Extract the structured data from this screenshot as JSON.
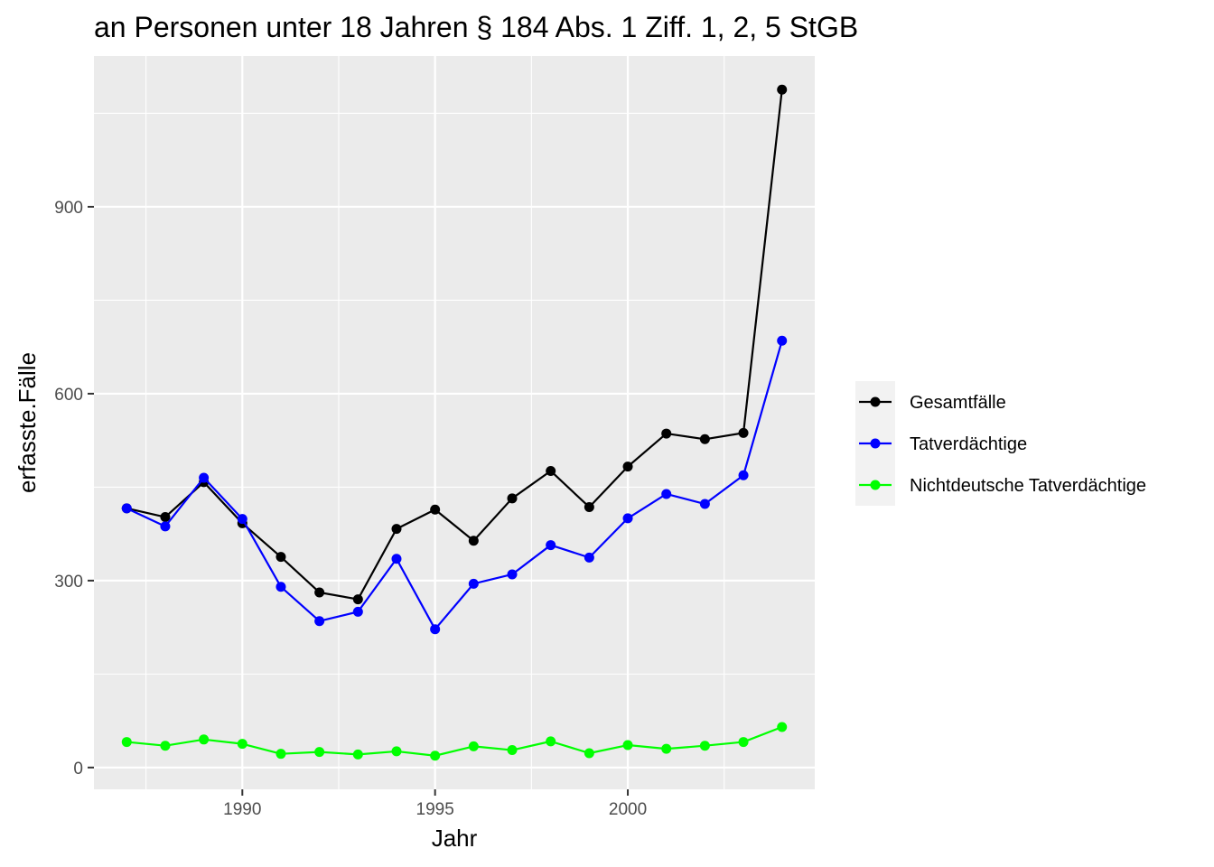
{
  "chart_data": {
    "type": "line",
    "title": "an Personen unter 18 Jahren § 184 Abs. 1 Ziff. 1, 2, 5 StGB",
    "xlabel": "Jahr",
    "ylabel": "erfasste.Fälle",
    "xlim": [
      1986.15,
      2004.85
    ],
    "ylim": [
      -35,
      1142
    ],
    "x_ticks": [
      1990,
      1995,
      2000
    ],
    "x_minor": [
      1987.5,
      1992.5,
      1997.5,
      2002.5
    ],
    "y_ticks": [
      0,
      300,
      600,
      900
    ],
    "y_minor": [
      150,
      450,
      750,
      1050
    ],
    "grid": true,
    "legend_position": "right",
    "x": [
      1987,
      1988,
      1989,
      1990,
      1991,
      1992,
      1993,
      1994,
      1995,
      1996,
      1997,
      1998,
      1999,
      2000,
      2001,
      2002,
      2003,
      2004
    ],
    "series": [
      {
        "name": "Gesamtfälle",
        "color": "#000000",
        "values": [
          416,
          402,
          458,
          392,
          338,
          281,
          270,
          383,
          414,
          364,
          432,
          476,
          418,
          483,
          536,
          527,
          537,
          1088
        ]
      },
      {
        "name": "Tatverdächtige",
        "color": "#0000ff",
        "values": [
          416,
          387,
          465,
          399,
          290,
          235,
          250,
          335,
          222,
          295,
          310,
          357,
          337,
          400,
          439,
          423,
          469,
          685
        ]
      },
      {
        "name": "Nichtdeutsche Tatverdächtige",
        "color": "#00ff00",
        "values": [
          41,
          35,
          45,
          38,
          22,
          25,
          21,
          26,
          19,
          34,
          28,
          42,
          23,
          36,
          30,
          35,
          41,
          65
        ]
      }
    ]
  }
}
